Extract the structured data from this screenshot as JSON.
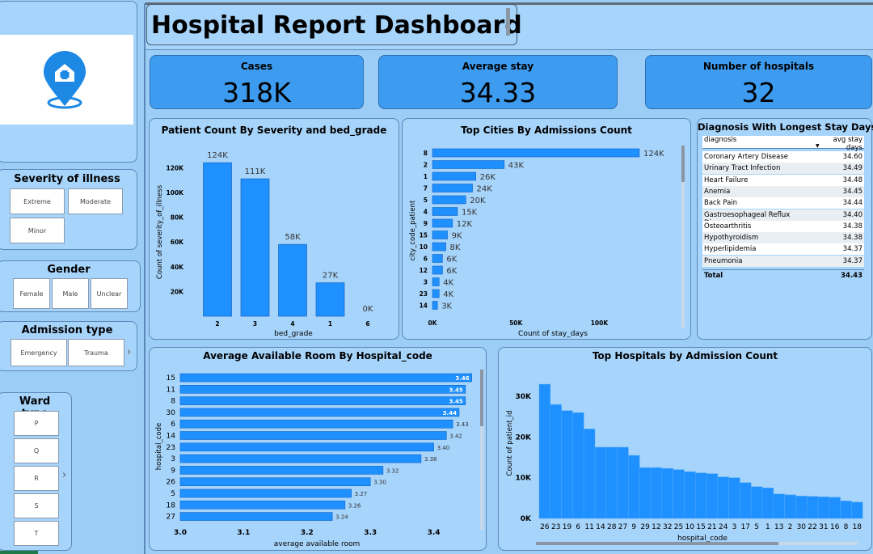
{
  "header": {
    "title": "Hospital Report Dashboard"
  },
  "colors": {
    "accent": "#1e90ff",
    "card": "#3d9bf0",
    "panel": "#a7d4fb",
    "background": "#9ccdf6"
  },
  "logo": {
    "icon": "hospital-location-icon"
  },
  "kpis": [
    {
      "title": "Cases",
      "value": "318K"
    },
    {
      "title": "Average stay",
      "value": "34.33"
    },
    {
      "title": "Number of hospitals",
      "value": "32"
    }
  ],
  "slicers": {
    "severity": {
      "title": "Severity of illness",
      "options": [
        "Extreme",
        "Moderate",
        "Minor"
      ]
    },
    "gender": {
      "title": "Gender",
      "options": [
        "Female",
        "Male",
        "Unclear"
      ]
    },
    "admission": {
      "title": "Admission type",
      "options": [
        "Emergency",
        "Trauma"
      ]
    },
    "ward": {
      "title": "Ward type",
      "options": [
        "P",
        "Q",
        "R",
        "S",
        "T"
      ]
    }
  },
  "table": {
    "title": "Diagnosis With Longest Stay Days",
    "headers": [
      "diagnosis",
      "avg stay days"
    ],
    "rows": [
      [
        "Coronary Artery Disease",
        "34.60"
      ],
      [
        "Urinary Tract Infection",
        "34.49"
      ],
      [
        "Heart Failure",
        "34.48"
      ],
      [
        "Anemia",
        "34.45"
      ],
      [
        "Back Pain",
        "34.44"
      ],
      [
        "Gastroesophageal Reflux Disease",
        "34.40"
      ],
      [
        "Osteoarthritis",
        "34.38"
      ],
      [
        "Hypothyroidism",
        "34.38"
      ],
      [
        "Hyperlipidemia",
        "34.37"
      ],
      [
        "Pneumonia",
        "34.37"
      ]
    ],
    "total_label": "Total",
    "total_value": "34.43"
  },
  "chart_data": [
    {
      "type": "bar",
      "title": "Patient Count By Severity and bed_grade",
      "xlabel": "bed_grade",
      "ylabel": "Count of severity_of_illness",
      "categories": [
        "2",
        "3",
        "4",
        "1",
        "6"
      ],
      "values": [
        124000,
        111000,
        58000,
        27000,
        0
      ],
      "data_labels": [
        "124K",
        "111K",
        "58K",
        "27K",
        "0K"
      ],
      "y_ticks": [
        "20K",
        "40K",
        "60K",
        "80K",
        "100K",
        "120K"
      ],
      "ylim": [
        0,
        130000
      ],
      "grid": false
    },
    {
      "type": "bar",
      "orientation": "horizontal",
      "title": "Top Cities By Admissions Count",
      "xlabel": "Count of stay_days",
      "ylabel": "city_code_patient",
      "categories": [
        "8",
        "2",
        "1",
        "7",
        "5",
        "4",
        "9",
        "15",
        "10",
        "6",
        "12",
        "3",
        "23",
        "14"
      ],
      "values": [
        124000,
        43000,
        26000,
        24000,
        20000,
        15000,
        12000,
        9000,
        8000,
        6000,
        6000,
        4000,
        4000,
        3000
      ],
      "data_labels": [
        "124K",
        "43K",
        "26K",
        "24K",
        "20K",
        "15K",
        "12K",
        "9K",
        "8K",
        "6K",
        "6K",
        "4K",
        "4K",
        "3K"
      ],
      "x_ticks": [
        "0K",
        "50K",
        "100K"
      ],
      "xlim": [
        0,
        124000
      ],
      "grid": false
    },
    {
      "type": "bar",
      "orientation": "horizontal",
      "title": "Average Available Room By Hospital_code",
      "xlabel": "average available room",
      "ylabel": "hospital_code",
      "categories": [
        "15",
        "11",
        "8",
        "30",
        "6",
        "14",
        "23",
        "3",
        "9",
        "26",
        "5",
        "18",
        "27"
      ],
      "values": [
        3.46,
        3.45,
        3.45,
        3.44,
        3.43,
        3.42,
        3.4,
        3.38,
        3.32,
        3.3,
        3.27,
        3.26,
        3.24
      ],
      "data_labels": [
        "3.46",
        "3.45",
        "3.45",
        "3.44",
        "3.43",
        "3.42",
        "3.40",
        "3.38",
        "3.32",
        "3.30",
        "3.27",
        "3.26",
        "3.24"
      ],
      "x_ticks": [
        "3.0",
        "3.1",
        "3.2",
        "3.3",
        "3.4"
      ],
      "xlim": [
        3.0,
        3.46
      ],
      "grid": false
    },
    {
      "type": "area",
      "title": "Top Hospitals by Admission Count",
      "xlabel": "hospital_code",
      "ylabel": "Count of patient_id",
      "categories": [
        "26",
        "23",
        "19",
        "6",
        "11",
        "14",
        "28",
        "27",
        "9",
        "29",
        "12",
        "32",
        "25",
        "10",
        "15",
        "21",
        "24",
        "3",
        "17",
        "5",
        "1",
        "13",
        "2",
        "30",
        "22",
        "31",
        "16",
        "8",
        "18"
      ],
      "values": [
        33000,
        28000,
        26500,
        26000,
        22000,
        17500,
        17500,
        17500,
        15500,
        12500,
        12500,
        12300,
        12000,
        11500,
        11200,
        11000,
        10200,
        10000,
        8800,
        7800,
        7500,
        6000,
        5800,
        5500,
        5400,
        5300,
        5200,
        4300,
        4000
      ],
      "y_ticks": [
        "0K",
        "10K",
        "20K",
        "30K"
      ],
      "ylim": [
        0,
        35000
      ],
      "grid": false
    }
  ]
}
